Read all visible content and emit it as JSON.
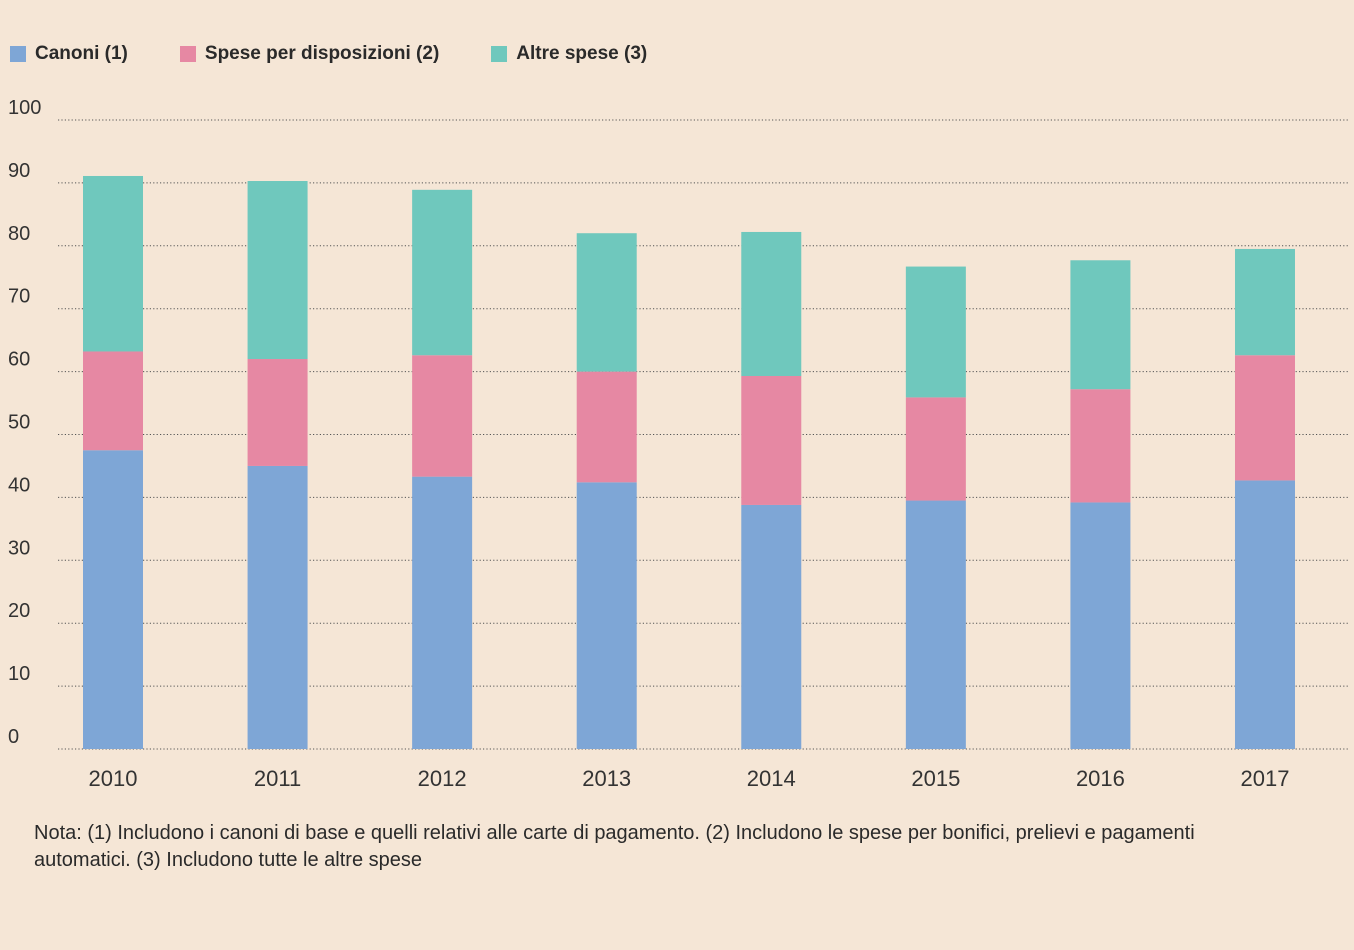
{
  "colors": {
    "canoni": "#7ea6d6",
    "spese_disposizioni": "#e688a3",
    "altre_spese": "#6fc8bd",
    "grid": "#555555",
    "background": "#f5e6d6"
  },
  "legend": {
    "items": [
      {
        "label": "Canoni (1)",
        "color_key": "canoni"
      },
      {
        "label": "Spese per disposizioni (2)",
        "color_key": "spese_disposizioni"
      },
      {
        "label": "Altre spese (3)",
        "color_key": "altre_spese"
      }
    ]
  },
  "note": "Nota: (1) Includono i canoni di base e quelli relativi alle carte di pagamento. (2) Includono le spese per bonifici, prelievi e pagamenti automatici. (3) Includono tutte le altre spese",
  "chart_data": {
    "type": "bar",
    "stacked": true,
    "title": "",
    "xlabel": "",
    "ylabel": "",
    "ylim": [
      0,
      100
    ],
    "yticks": [
      0,
      10,
      20,
      30,
      40,
      50,
      60,
      70,
      80,
      90,
      100
    ],
    "grid": true,
    "legend_position": "top-left",
    "categories": [
      "2010",
      "2011",
      "2012",
      "2013",
      "2014",
      "2015",
      "2016",
      "2017"
    ],
    "series": [
      {
        "name": "Canoni (1)",
        "color_key": "canoni",
        "values": [
          47.5,
          45,
          43.3,
          42.4,
          38.8,
          39.5,
          39.2,
          42.7
        ]
      },
      {
        "name": "Spese per disposizioni (2)",
        "color_key": "spese_disposizioni",
        "values": [
          15.7,
          17,
          19.3,
          17.6,
          20.5,
          16.4,
          18,
          19.9
        ]
      },
      {
        "name": "Altre spese (3)",
        "color_key": "altre_spese",
        "values": [
          27.9,
          28.3,
          26.3,
          22,
          22.9,
          20.8,
          20.5,
          16.9
        ]
      }
    ]
  }
}
